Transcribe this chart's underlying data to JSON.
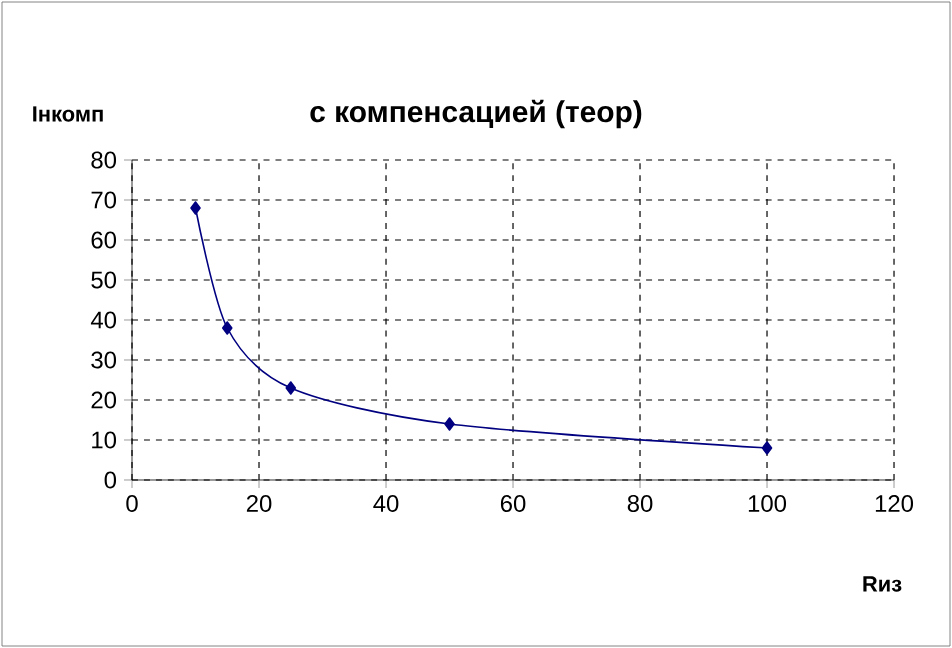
{
  "chart_data": {
    "type": "line",
    "title": "с компенсацией (теор)",
    "xlabel": "Rиз",
    "ylabel": "Iнкомп",
    "x": [
      10,
      15,
      25,
      50,
      100
    ],
    "series": [
      {
        "color": "#000080",
        "values": [
          68,
          38,
          23,
          14,
          8
        ]
      }
    ],
    "xlim": [
      0,
      120
    ],
    "xticks": [
      0,
      20,
      40,
      60,
      80,
      100,
      120
    ],
    "ylim": [
      0,
      80
    ],
    "yticks": [
      0,
      10,
      20,
      30,
      40,
      50,
      60,
      70,
      80
    ],
    "grid": true,
    "marker": "diamond",
    "line_style": "solid"
  }
}
